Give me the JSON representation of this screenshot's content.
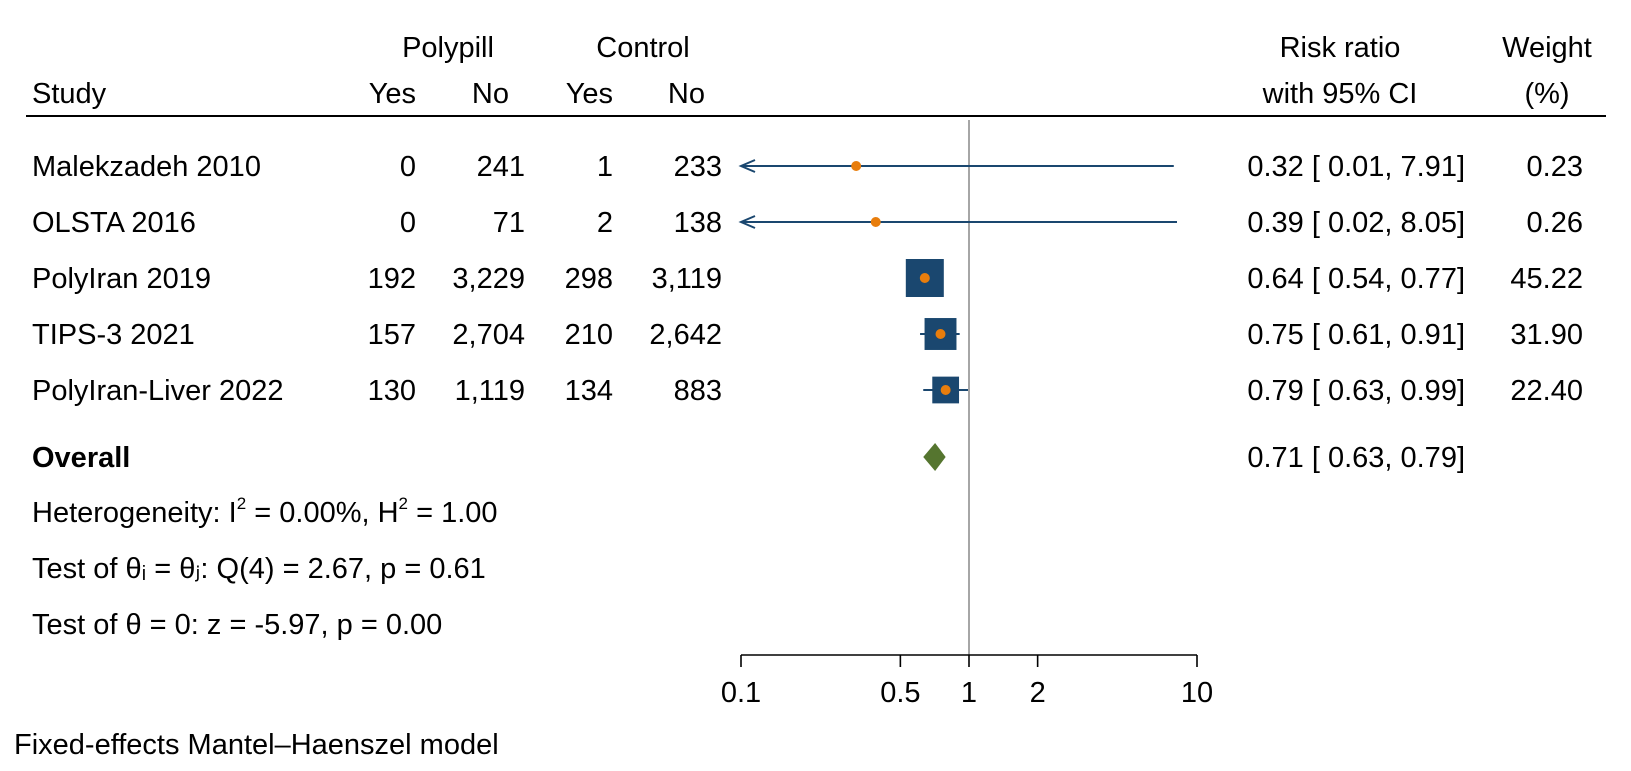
{
  "header": {
    "group1": "Polypill",
    "group2": "Control",
    "study": "Study",
    "yes1": "Yes",
    "no1": "No",
    "yes2": "Yes",
    "no2": "No",
    "effect_line1": "Risk ratio",
    "effect_line2": "with 95% CI",
    "weight_line1": "Weight",
    "weight_line2": "(%)"
  },
  "summary": {
    "overall_label": "Overall",
    "overall_ci": "0.71 [ 0.63,  0.79]",
    "heterogeneity": {
      "prefix": "Heterogeneity: I",
      "sup1": "2",
      "mid": " = 0.00%, H",
      "sup2": "2",
      "suffix": " = 1.00"
    },
    "test_theta_ij": "Test of θᵢ = θⱼ: Q(4) = 2.67, p = 0.61",
    "test_theta_0": "Test of θ = 0: z = -5.97, p = 0.00"
  },
  "footnote": "Fixed-effects Mantel–Haenszel model",
  "colors": {
    "ci_line": "#1a476f",
    "weight_box": "#1a476f",
    "point": "#e87d0c",
    "diamond": "#55752f",
    "null_line": "#909090"
  },
  "chart_data": {
    "type": "forest",
    "xlabel": "",
    "x_scale": "log",
    "xlim": [
      0.1,
      10
    ],
    "x_ticks": [
      0.1,
      0.5,
      1,
      2,
      10
    ],
    "x_tick_labels": [
      "0.1",
      "0.5",
      "1",
      "2",
      "10"
    ],
    "null_value": 1,
    "studies": [
      {
        "study": "Malekzadeh 2010",
        "pp_yes": "0",
        "pp_no": "241",
        "ctrl_yes": "1",
        "ctrl_no": "233",
        "rr": 0.32,
        "lo": 0.01,
        "hi": 7.91,
        "ci_text": "0.32 [ 0.01,  7.91]",
        "weight": 0.23,
        "weight_text": "0.23"
      },
      {
        "study": "OLSTA 2016",
        "pp_yes": "0",
        "pp_no": "71",
        "ctrl_yes": "2",
        "ctrl_no": "138",
        "rr": 0.39,
        "lo": 0.02,
        "hi": 8.05,
        "ci_text": "0.39 [ 0.02,  8.05]",
        "weight": 0.26,
        "weight_text": "0.26"
      },
      {
        "study": "PolyIran 2019",
        "pp_yes": "192",
        "pp_no": "3,229",
        "ctrl_yes": "298",
        "ctrl_no": "3,119",
        "rr": 0.64,
        "lo": 0.54,
        "hi": 0.77,
        "ci_text": "0.64 [ 0.54,  0.77]",
        "weight": 45.22,
        "weight_text": "45.22"
      },
      {
        "study": "TIPS-3 2021",
        "pp_yes": "157",
        "pp_no": "2,704",
        "ctrl_yes": "210",
        "ctrl_no": "2,642",
        "rr": 0.75,
        "lo": 0.61,
        "hi": 0.91,
        "ci_text": "0.75 [ 0.61,  0.91]",
        "weight": 31.9,
        "weight_text": "31.90"
      },
      {
        "study": "PolyIran-Liver 2022",
        "pp_yes": "130",
        "pp_no": "1,119",
        "ctrl_yes": "134",
        "ctrl_no": "883",
        "rr": 0.79,
        "lo": 0.63,
        "hi": 0.99,
        "ci_text": "0.79 [ 0.63,  0.99]",
        "weight": 22.4,
        "weight_text": "22.40"
      }
    ],
    "overall": {
      "rr": 0.71,
      "lo": 0.63,
      "hi": 0.79
    }
  }
}
